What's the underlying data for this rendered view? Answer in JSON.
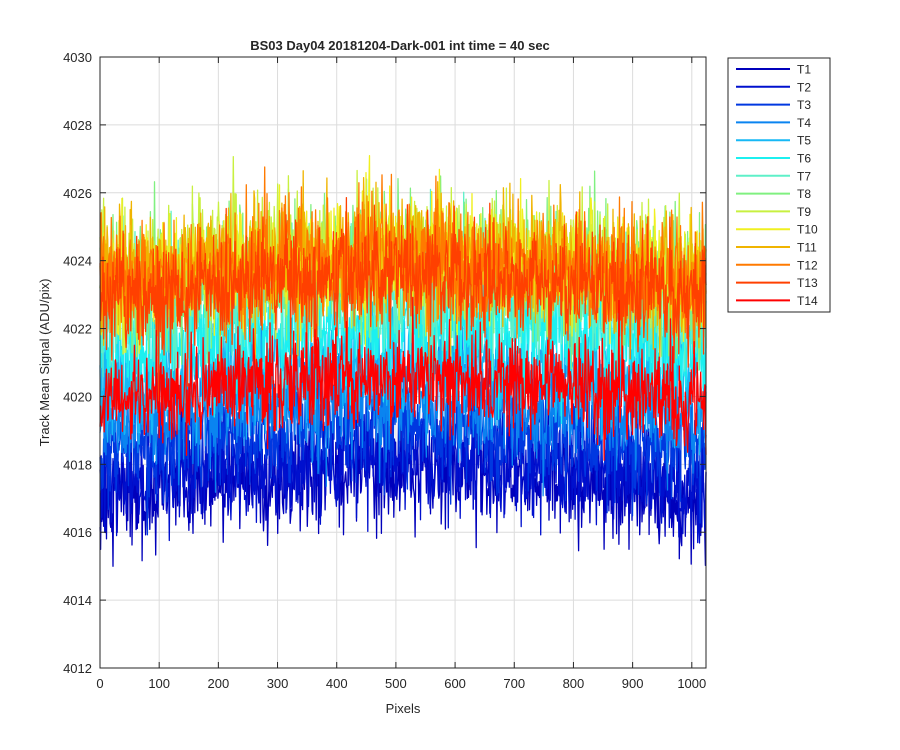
{
  "chart_data": {
    "type": "line",
    "title": "BS03 Day04 20181204-Dark-001 int time = 40 sec",
    "xlabel": "Pixels",
    "ylabel": "Track Mean Signal (ADU/pix)",
    "xlim": [
      0,
      1024
    ],
    "ylim": [
      4012,
      4030
    ],
    "xticks": [
      0,
      100,
      200,
      300,
      400,
      500,
      600,
      700,
      800,
      900,
      1000
    ],
    "yticks": [
      4012,
      4014,
      4016,
      4018,
      4020,
      4022,
      4024,
      4026,
      4028,
      4030
    ],
    "grid": true,
    "legend_position": "outside-top-right",
    "n_points_per_series": 1024,
    "series": [
      {
        "name": "T1",
        "color": "#0000bb",
        "mean": 4017.4,
        "spread": 1.9
      },
      {
        "name": "T2",
        "color": "#0010ce",
        "mean": 4017.9,
        "spread": 1.9
      },
      {
        "name": "T3",
        "color": "#0038e0",
        "mean": 4018.8,
        "spread": 1.9
      },
      {
        "name": "T4",
        "color": "#0a84f0",
        "mean": 4019.6,
        "spread": 1.9
      },
      {
        "name": "T5",
        "color": "#17b8f5",
        "mean": 4020.6,
        "spread": 2.0
      },
      {
        "name": "T6",
        "color": "#1cf0f0",
        "mean": 4021.8,
        "spread": 2.1
      },
      {
        "name": "T7",
        "color": "#5ef0c8",
        "mean": 4022.9,
        "spread": 2.2
      },
      {
        "name": "T8",
        "color": "#80f080",
        "mean": 4023.6,
        "spread": 2.3
      },
      {
        "name": "T9",
        "color": "#c8f040",
        "mean": 4023.8,
        "spread": 2.2
      },
      {
        "name": "T10",
        "color": "#f0f020",
        "mean": 4023.7,
        "spread": 2.1
      },
      {
        "name": "T11",
        "color": "#f0b400",
        "mean": 4023.8,
        "spread": 2.1
      },
      {
        "name": "T12",
        "color": "#ff7a00",
        "mean": 4023.7,
        "spread": 2.1
      },
      {
        "name": "T13",
        "color": "#ff4000",
        "mean": 4023.2,
        "spread": 2.0
      },
      {
        "name": "T14",
        "color": "#ff0000",
        "mean": 4020.2,
        "spread": 1.7
      }
    ]
  }
}
